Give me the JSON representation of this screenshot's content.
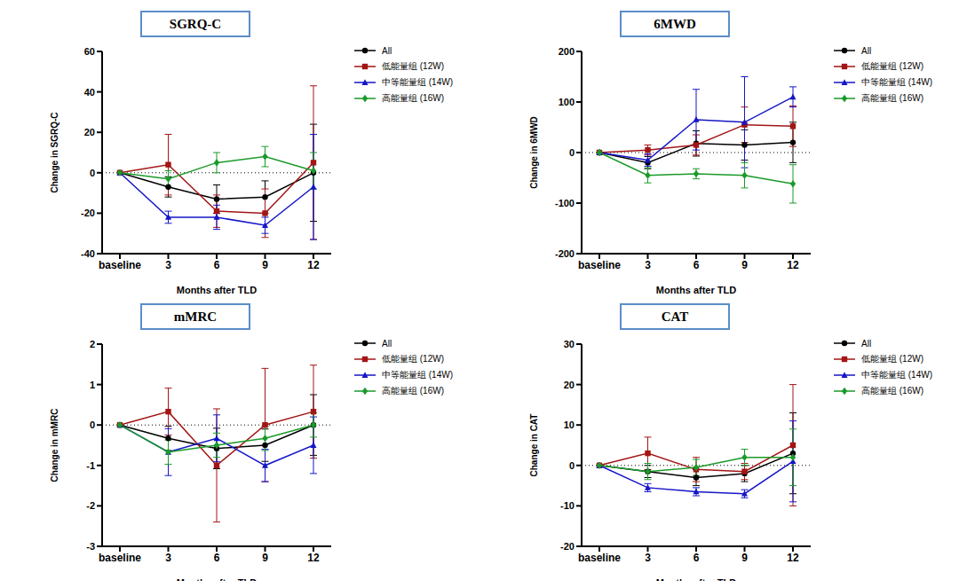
{
  "chart_data": [
    {
      "type": "line",
      "title": "SGRQ-C",
      "x_label": "Months after TLD",
      "y_label": "Change in SGRQ-C",
      "categories": [
        "baseline",
        "3",
        "6",
        "9",
        "12"
      ],
      "ylim": [
        -40,
        60
      ],
      "yticks": [
        -40,
        -20,
        0,
        20,
        40,
        60
      ],
      "grid": false,
      "legend": "right",
      "reference_y": 0,
      "series": [
        {
          "name": "All",
          "color": "#000000",
          "marker": "circle",
          "values": [
            0,
            -7,
            -13,
            -12,
            0
          ],
          "errors": [
            0,
            5,
            7,
            8,
            24
          ]
        },
        {
          "name": "低能量组 (12W)",
          "color": "#A31515",
          "marker": "square",
          "values": [
            0,
            4,
            -19,
            -20,
            5
          ],
          "errors": [
            0,
            15,
            8,
            12,
            38
          ]
        },
        {
          "name": "中等能量组 (14W)",
          "color": "#1515C8",
          "marker": "triangle",
          "values": [
            0,
            -22,
            -22,
            -26,
            -7
          ],
          "errors": [
            0,
            3,
            6,
            4,
            26
          ]
        },
        {
          "name": "高能量组 (16W)",
          "color": "#1A9A2A",
          "marker": "diamond",
          "values": [
            0,
            -3,
            5,
            8,
            1
          ],
          "errors": [
            0,
            4,
            5,
            5,
            9
          ]
        }
      ]
    },
    {
      "type": "line",
      "title": "6MWD",
      "x_label": "Months after TLD",
      "y_label": "Change in 6MWD",
      "categories": [
        "baseline",
        "3",
        "6",
        "9",
        "12"
      ],
      "ylim": [
        -200,
        200
      ],
      "yticks": [
        -200,
        -100,
        0,
        100,
        200
      ],
      "grid": false,
      "legend": "right",
      "reference_y": 0,
      "series": [
        {
          "name": "All",
          "color": "#000000",
          "marker": "circle",
          "values": [
            0,
            -20,
            18,
            15,
            20
          ],
          "errors": [
            0,
            12,
            25,
            30,
            40
          ]
        },
        {
          "name": "低能量组 (12W)",
          "color": "#A31515",
          "marker": "square",
          "values": [
            0,
            5,
            15,
            55,
            52
          ],
          "errors": [
            0,
            10,
            20,
            35,
            40
          ]
        },
        {
          "name": "中等能量组 (14W)",
          "color": "#1515C8",
          "marker": "triangle",
          "values": [
            0,
            -15,
            65,
            60,
            110
          ],
          "errors": [
            0,
            12,
            60,
            90,
            20
          ]
        },
        {
          "name": "高能量组 (16W)",
          "color": "#1A9A2A",
          "marker": "diamond",
          "values": [
            0,
            -45,
            -42,
            -45,
            -62
          ],
          "errors": [
            0,
            15,
            10,
            25,
            38
          ]
        }
      ]
    },
    {
      "type": "line",
      "title": "mMRC",
      "x_label": "Months after TLD",
      "y_label": "Change in mMRC",
      "categories": [
        "baseline",
        "3",
        "6",
        "9",
        "12"
      ],
      "ylim": [
        -3,
        2
      ],
      "yticks": [
        -3,
        -2,
        -1,
        0,
        1,
        2
      ],
      "grid": false,
      "legend": "right",
      "reference_y": 0,
      "series": [
        {
          "name": "All",
          "color": "#000000",
          "marker": "circle",
          "values": [
            0,
            -0.33,
            -0.58,
            -0.5,
            0
          ],
          "errors": [
            0,
            0.3,
            0.5,
            0.4,
            0.75
          ]
        },
        {
          "name": "低能量组 (12W)",
          "color": "#A31515",
          "marker": "square",
          "values": [
            0,
            0.33,
            -1,
            0,
            0.33
          ],
          "errors": [
            0,
            0.58,
            1.4,
            1.4,
            1.15
          ]
        },
        {
          "name": "中等能量组 (14W)",
          "color": "#1515C8",
          "marker": "triangle",
          "values": [
            0,
            -0.67,
            -0.33,
            -1,
            -0.5
          ],
          "errors": [
            0,
            0.58,
            0.58,
            0.4,
            0.7
          ]
        },
        {
          "name": "高能量组 (16W)",
          "color": "#1A9A2A",
          "marker": "diamond",
          "values": [
            0,
            -0.67,
            -0.5,
            -0.33,
            0
          ],
          "errors": [
            0,
            0.3,
            0.3,
            0.3,
            0.3
          ]
        }
      ]
    },
    {
      "type": "line",
      "title": "CAT",
      "x_label": "Months after TLD",
      "y_label": "Change in CAT",
      "categories": [
        "baseline",
        "3",
        "6",
        "9",
        "12"
      ],
      "ylim": [
        -20,
        30
      ],
      "yticks": [
        -20,
        -10,
        0,
        10,
        20,
        30
      ],
      "grid": false,
      "legend": "right",
      "reference_y": 0,
      "series": [
        {
          "name": "All",
          "color": "#000000",
          "marker": "circle",
          "values": [
            0,
            -1.5,
            -3,
            -2,
            3
          ],
          "errors": [
            0,
            1.5,
            2,
            2,
            10
          ]
        },
        {
          "name": "低能量组 (12W)",
          "color": "#A31515",
          "marker": "square",
          "values": [
            0,
            3,
            -1,
            -1.5,
            5
          ],
          "errors": [
            0,
            4,
            3,
            2,
            15
          ]
        },
        {
          "name": "中等能量组 (14W)",
          "color": "#1515C8",
          "marker": "triangle",
          "values": [
            0,
            -5.5,
            -6.5,
            -7,
            1
          ],
          "errors": [
            0,
            1,
            1,
            1,
            10
          ]
        },
        {
          "name": "高能量组 (16W)",
          "color": "#1A9A2A",
          "marker": "diamond",
          "values": [
            0,
            -1.5,
            -0.5,
            2,
            2
          ],
          "errors": [
            0,
            2,
            2,
            2,
            7
          ]
        }
      ]
    }
  ]
}
